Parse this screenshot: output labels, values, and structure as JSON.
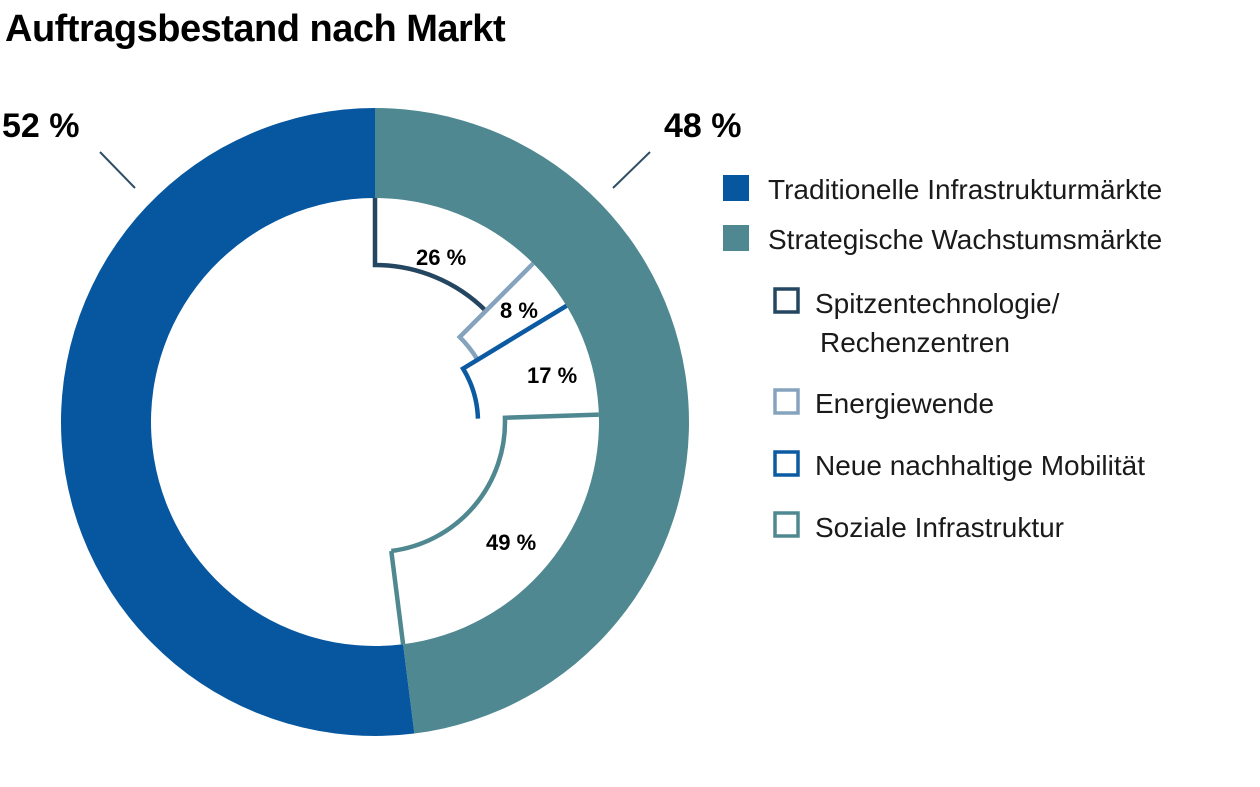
{
  "title": "Auftragsbestand nach Markt",
  "colors": {
    "traditionelle": "#0657a0",
    "strategische": "#4f8890",
    "spitzentechnologie": "#244660",
    "energiewende": "#86a3bd",
    "mobilitaet": "#0b5aa2",
    "sozial": "#4f8890"
  },
  "chart_data": {
    "type": "pie",
    "title": "Auftragsbestand nach Markt",
    "outer": {
      "labels": [
        "Traditionelle Infrastrukturmärkte",
        "Strategische Wachstumsmärkte"
      ],
      "values": [
        52,
        48
      ],
      "value_labels": [
        "52 %",
        "48 %"
      ]
    },
    "inner": {
      "parent": "Strategische Wachstumsmärkte",
      "labels": [
        "Spitzentechnologie/ Rechenzentren",
        "Energiewende",
        "Neue nachhaltige Mobilität",
        "Soziale Infrastruktur"
      ],
      "values": [
        26,
        8,
        17,
        49
      ],
      "value_labels": [
        "26 %",
        "8 %",
        "17 %",
        "49 %"
      ]
    },
    "legend": {
      "position": "right",
      "items": [
        {
          "label": "Traditionelle Infrastrukturmärkte",
          "style": "filled"
        },
        {
          "label": "Strategische Wachstumsmärkte",
          "style": "filled"
        },
        {
          "label_lines": [
            "Spitzentechnologie/",
            "Rechenzentren"
          ],
          "style": "outline"
        },
        {
          "label": "Energiewende",
          "style": "outline"
        },
        {
          "label": "Neue nachhaltige Mobilität",
          "style": "outline"
        },
        {
          "label": "Soziale Infrastruktur",
          "style": "outline"
        }
      ]
    }
  }
}
